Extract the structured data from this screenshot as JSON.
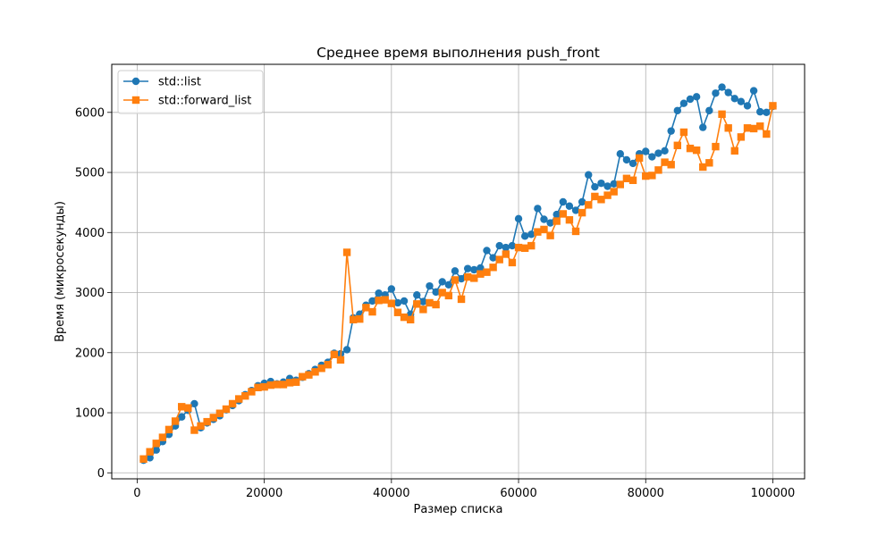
{
  "chart_data": {
    "type": "line",
    "title": "Среднее время выполнения push_front",
    "xlabel": "Размер списка",
    "ylabel": "Время (микросекунды)",
    "xlim": [
      -4000,
      105000
    ],
    "ylim": [
      -100,
      6800
    ],
    "x_ticks": [
      0,
      20000,
      40000,
      60000,
      80000,
      100000
    ],
    "y_ticks": [
      0,
      1000,
      2000,
      3000,
      4000,
      5000,
      6000
    ],
    "grid": true,
    "legend_position": "upper-left",
    "x": [
      1000,
      2000,
      3000,
      4000,
      5000,
      6000,
      7000,
      8000,
      9000,
      10000,
      11000,
      12000,
      13000,
      14000,
      15000,
      16000,
      17000,
      18000,
      19000,
      20000,
      21000,
      22000,
      23000,
      24000,
      25000,
      26000,
      27000,
      28000,
      29000,
      30000,
      31000,
      32000,
      33000,
      34000,
      35000,
      36000,
      37000,
      38000,
      39000,
      40000,
      41000,
      42000,
      43000,
      44000,
      45000,
      46000,
      47000,
      48000,
      49000,
      50000,
      51000,
      52000,
      53000,
      54000,
      55000,
      56000,
      57000,
      58000,
      59000,
      60000,
      61000,
      62000,
      63000,
      64000,
      65000,
      66000,
      67000,
      68000,
      69000,
      70000,
      71000,
      72000,
      73000,
      74000,
      75000,
      76000,
      77000,
      78000,
      79000,
      80000,
      81000,
      82000,
      83000,
      84000,
      85000,
      86000,
      87000,
      88000,
      89000,
      90000,
      91000,
      92000,
      93000,
      94000,
      95000,
      96000,
      97000,
      98000,
      99000,
      100000
    ],
    "series": [
      {
        "name": "std::list",
        "color": "#1f77b4",
        "marker": "circle",
        "values": [
          210,
          250,
          380,
          520,
          640,
          780,
          930,
          1040,
          1150,
          750,
          830,
          890,
          950,
          1050,
          1120,
          1200,
          1300,
          1370,
          1450,
          1490,
          1520,
          1480,
          1510,
          1570,
          1540,
          1590,
          1650,
          1720,
          1790,
          1840,
          1990,
          1980,
          2050,
          2580,
          2640,
          2790,
          2860,
          2990,
          2960,
          3060,
          2830,
          2860,
          2640,
          2960,
          2850,
          3110,
          3010,
          3180,
          3130,
          3360,
          3230,
          3400,
          3380,
          3410,
          3700,
          3580,
          3780,
          3750,
          3780,
          4230,
          3940,
          3970,
          4400,
          4220,
          4160,
          4300,
          4510,
          4440,
          4370,
          4510,
          4960,
          4760,
          4820,
          4770,
          4810,
          5310,
          5210,
          5150,
          5310,
          5350,
          5260,
          5320,
          5360,
          5690,
          6030,
          6150,
          6220,
          6260,
          5750,
          6030,
          6320,
          6420,
          6330,
          6230,
          6180,
          6110,
          6360,
          6010,
          6000,
          6100
        ]
      },
      {
        "name": "std::forward_list",
        "color": "#ff7f0e",
        "marker": "square",
        "values": [
          230,
          350,
          490,
          590,
          720,
          860,
          1100,
          1080,
          710,
          780,
          850,
          920,
          990,
          1060,
          1150,
          1230,
          1280,
          1350,
          1420,
          1430,
          1460,
          1470,
          1470,
          1500,
          1510,
          1600,
          1630,
          1680,
          1740,
          1800,
          1970,
          1880,
          3670,
          2550,
          2560,
          2750,
          2680,
          2870,
          2880,
          2820,
          2670,
          2590,
          2550,
          2810,
          2720,
          2830,
          2800,
          3000,
          2950,
          3210,
          2890,
          3260,
          3240,
          3310,
          3340,
          3420,
          3550,
          3640,
          3500,
          3750,
          3740,
          3780,
          4010,
          4050,
          3950,
          4190,
          4310,
          4210,
          4020,
          4330,
          4460,
          4600,
          4550,
          4620,
          4680,
          4800,
          4900,
          4870,
          5240,
          4940,
          4950,
          5040,
          5170,
          5130,
          5450,
          5670,
          5400,
          5370,
          5090,
          5160,
          5430,
          5970,
          5740,
          5360,
          5590,
          5740,
          5730,
          5770,
          5640,
          6110
        ]
      }
    ]
  }
}
